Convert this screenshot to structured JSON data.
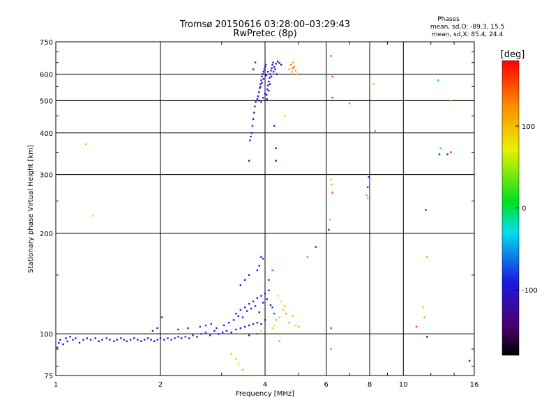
{
  "chart_data": {
    "type": "scatter",
    "title": "Tromsø 20150616 03:28:00–03:29:43",
    "subtitle": "RwPretec (8p)",
    "xlabel": "Frequency [MHz]",
    "ylabel": "Stationary phase Virtual Height [km]",
    "x_scale": "log",
    "y_scale": "log",
    "xlim": [
      1,
      16
    ],
    "ylim": [
      75,
      750
    ],
    "x_ticks": [
      1,
      2,
      4,
      6,
      8,
      10,
      16
    ],
    "y_ticks": [
      75,
      100,
      200,
      300,
      400,
      500,
      600,
      750
    ],
    "grid": true,
    "stats": {
      "heading": "Phases",
      "line_o": "mean, sd,O: -89.3, 15.5",
      "line_x": "mean, sd,X:  85.4, 24.4"
    },
    "colorbar": {
      "label": "[deg]",
      "range": [
        -180,
        180
      ],
      "ticks": [
        100,
        0,
        -100
      ],
      "tick_labels": [
        "100",
        "0",
        "-100"
      ],
      "colormap": "rainbow black-purple-blue-cyan-green-yellow-red"
    },
    "series": [
      {
        "points": [
          [
            1.01,
            91,
            -95
          ],
          [
            1.02,
            94,
            -92
          ],
          [
            1.03,
            96,
            -98
          ],
          [
            1.05,
            93,
            -90
          ],
          [
            1.07,
            97,
            -96
          ],
          [
            1.08,
            95,
            -100
          ],
          [
            1.1,
            98,
            -94
          ],
          [
            1.12,
            96,
            -92
          ],
          [
            1.14,
            97,
            -97
          ],
          [
            1.17,
            94,
            -99
          ],
          [
            1.2,
            96,
            -95
          ],
          [
            1.23,
            97,
            -91
          ],
          [
            1.26,
            96,
            -100
          ],
          [
            1.3,
            97,
            -94
          ],
          [
            1.33,
            95,
            -97
          ],
          [
            1.36,
            96,
            -92
          ],
          [
            1.4,
            97,
            -98
          ],
          [
            1.43,
            96,
            -95
          ],
          [
            1.47,
            95,
            -93
          ],
          [
            1.5,
            96,
            -99
          ],
          [
            1.54,
            97,
            -96
          ],
          [
            1.57,
            96,
            -91
          ],
          [
            1.6,
            95,
            -97
          ],
          [
            1.64,
            96,
            -94
          ],
          [
            1.68,
            97,
            -100
          ],
          [
            1.72,
            96,
            -92
          ],
          [
            1.76,
            95,
            -96
          ],
          [
            1.8,
            96,
            -98
          ],
          [
            1.84,
            97,
            -94
          ],
          [
            1.88,
            96,
            -90
          ],
          [
            1.92,
            95,
            -97
          ],
          [
            1.96,
            96,
            -93
          ],
          [
            2.0,
            97,
            -95
          ],
          [
            2.05,
            96,
            -88
          ],
          [
            2.1,
            97,
            -82
          ],
          [
            2.15,
            96,
            -78
          ],
          [
            2.2,
            97,
            -85
          ],
          [
            2.25,
            98,
            -80
          ],
          [
            2.3,
            97,
            -92
          ],
          [
            2.36,
            98,
            -87
          ],
          [
            2.42,
            97,
            -95
          ],
          [
            2.48,
            99,
            -90
          ],
          [
            2.55,
            98,
            -84
          ],
          [
            2.62,
            100,
            -77
          ],
          [
            2.7,
            101,
            -80
          ],
          [
            2.78,
            99,
            -88
          ],
          [
            2.86,
            102,
            -92
          ],
          [
            2.94,
            100,
            -95
          ],
          [
            3.02,
            101,
            -90
          ],
          [
            3.1,
            102,
            -94
          ],
          [
            3.2,
            101,
            -96
          ],
          [
            3.3,
            103,
            -92
          ],
          [
            3.4,
            104,
            -98
          ],
          [
            3.5,
            105,
            -95
          ],
          [
            3.6,
            106,
            -97
          ],
          [
            3.7,
            107,
            -94
          ],
          [
            3.8,
            108,
            -99
          ],
          [
            3.9,
            107,
            -96
          ],
          [
            4.0,
            110,
            -93
          ],
          [
            1.9,
            102,
            -90
          ],
          [
            1.96,
            104,
            -86
          ],
          [
            2.02,
            112,
            -92
          ],
          [
            2.25,
            103,
            -88
          ],
          [
            2.4,
            104,
            -84
          ],
          [
            2.6,
            105,
            -80
          ],
          [
            2.7,
            106,
            -76
          ],
          [
            2.8,
            107,
            -82
          ],
          [
            2.9,
            104,
            -86
          ],
          [
            3.05,
            106,
            -90
          ],
          [
            3.15,
            108,
            -93
          ],
          [
            3.25,
            110,
            -95
          ],
          [
            3.3,
            115,
            -98
          ],
          [
            3.35,
            113,
            -92
          ],
          [
            3.4,
            118,
            -96
          ],
          [
            3.45,
            112,
            -94
          ],
          [
            3.5,
            120,
            -97
          ],
          [
            3.55,
            117,
            -95
          ],
          [
            3.6,
            123,
            -99
          ],
          [
            3.65,
            119,
            -93
          ],
          [
            3.7,
            125,
            -96
          ],
          [
            3.75,
            121,
            -98
          ],
          [
            3.8,
            128,
            -94
          ],
          [
            3.85,
            116,
            -97
          ],
          [
            3.9,
            130,
            -95
          ],
          [
            3.95,
            124,
            -92
          ],
          [
            4.0,
            132,
            -96
          ],
          [
            4.05,
            127,
            -98
          ],
          [
            4.1,
            135,
            -94
          ],
          [
            4.15,
            122,
            -90
          ],
          [
            4.2,
            120,
            -85
          ],
          [
            4.25,
            115,
            -75
          ],
          [
            3.4,
            140,
            -95
          ],
          [
            3.5,
            145,
            -97
          ],
          [
            3.6,
            150,
            -93
          ],
          [
            3.8,
            155,
            -95
          ],
          [
            3.9,
            170,
            -98
          ],
          [
            3.95,
            168,
            -96
          ],
          [
            3.85,
            160,
            -94
          ],
          [
            4.1,
            145,
            -88
          ],
          [
            4.3,
            110,
            40
          ],
          [
            4.4,
            112,
            60
          ],
          [
            4.5,
            118,
            90
          ],
          [
            4.55,
            121,
            100
          ],
          [
            4.6,
            115,
            110
          ],
          [
            4.7,
            108,
            120
          ],
          [
            4.8,
            113,
            95
          ],
          [
            4.9,
            106,
            80
          ],
          [
            4.45,
            125,
            70
          ],
          [
            4.35,
            130,
            85
          ],
          [
            4.2,
            104,
            60
          ],
          [
            4.25,
            106,
            75
          ],
          [
            3.2,
            87,
            90
          ],
          [
            3.3,
            84,
            60
          ],
          [
            3.35,
            81,
            80
          ],
          [
            3.45,
            78,
            110
          ],
          [
            4.4,
            95,
            30
          ],
          [
            4.2,
            155,
            150
          ],
          [
            5.0,
            105,
            115
          ],
          [
            5.6,
            182,
            -95
          ],
          [
            5.3,
            170,
            -20
          ],
          [
            6.2,
            104,
            160
          ],
          [
            6.2,
            90,
            -20
          ],
          [
            3.9,
            102,
            80
          ],
          [
            3.8,
            100,
            -60
          ],
          [
            3.6,
            99,
            -94
          ],
          [
            3.6,
            330,
            -96
          ],
          [
            3.62,
            380,
            -95
          ],
          [
            3.64,
            390,
            -97
          ],
          [
            3.66,
            400,
            -93
          ],
          [
            3.68,
            420,
            -98
          ],
          [
            3.7,
            440,
            -95
          ],
          [
            3.72,
            460,
            -94
          ],
          [
            3.74,
            480,
            -96
          ],
          [
            3.76,
            495,
            -98
          ],
          [
            3.8,
            505,
            -95
          ],
          [
            3.82,
            515,
            -93
          ],
          [
            3.84,
            530,
            -97
          ],
          [
            3.86,
            545,
            -95
          ],
          [
            3.88,
            560,
            -94
          ],
          [
            3.9,
            575,
            -96
          ],
          [
            3.92,
            590,
            -98
          ],
          [
            3.94,
            600,
            -95
          ],
          [
            3.96,
            610,
            -93
          ],
          [
            3.98,
            620,
            -97
          ],
          [
            4.0,
            630,
            -95
          ],
          [
            4.02,
            640,
            -94
          ],
          [
            4.04,
            520,
            -96
          ],
          [
            4.06,
            540,
            -98
          ],
          [
            4.08,
            555,
            -95
          ],
          [
            4.1,
            570,
            -93
          ],
          [
            4.12,
            585,
            -97
          ],
          [
            4.14,
            600,
            -95
          ],
          [
            4.16,
            615,
            -94
          ],
          [
            4.18,
            625,
            -96
          ],
          [
            4.2,
            640,
            -98
          ],
          [
            4.22,
            650,
            -95
          ],
          [
            4.25,
            630,
            -93
          ],
          [
            4.3,
            645,
            -97
          ],
          [
            4.35,
            655,
            -95
          ],
          [
            4.4,
            648,
            -94
          ],
          [
            4.45,
            640,
            -96
          ],
          [
            3.85,
            500,
            -95
          ],
          [
            3.9,
            495,
            -97
          ],
          [
            3.95,
            510,
            -93
          ],
          [
            4.0,
            525,
            -96
          ],
          [
            4.05,
            505,
            -94
          ],
          [
            4.1,
            535,
            -95
          ],
          [
            3.88,
            550,
            -97
          ],
          [
            3.92,
            565,
            -95
          ],
          [
            3.96,
            580,
            -93
          ],
          [
            4.03,
            595,
            -96
          ],
          [
            4.08,
            610,
            -98
          ],
          [
            4.13,
            560,
            -95
          ],
          [
            4.17,
            590,
            -94
          ],
          [
            4.23,
            610,
            -96
          ],
          [
            4.28,
            620,
            -98
          ],
          [
            4.32,
            600,
            -95
          ],
          [
            3.7,
            620,
            -94
          ],
          [
            3.75,
            650,
            -96
          ],
          [
            4.25,
            420,
            -90
          ],
          [
            4.3,
            360,
            -95
          ],
          [
            4.3,
            330,
            -90
          ],
          [
            4.7,
            620,
            120
          ],
          [
            4.75,
            640,
            130
          ],
          [
            4.78,
            610,
            110
          ],
          [
            4.82,
            650,
            125
          ],
          [
            4.85,
            630,
            135
          ],
          [
            4.9,
            615,
            118
          ],
          [
            4.95,
            600,
            105
          ],
          [
            4.8,
            625,
            140
          ],
          [
            4.55,
            450,
            90
          ],
          [
            6.0,
            600,
            -60
          ],
          [
            6.2,
            680,
            150
          ],
          [
            6.25,
            590,
            150
          ],
          [
            6.25,
            510,
            170
          ],
          [
            7.0,
            490,
            130
          ],
          [
            8.2,
            560,
            100
          ],
          [
            8.3,
            405,
            20
          ],
          [
            6.15,
            220,
            110
          ],
          [
            6.2,
            290,
            90
          ],
          [
            6.22,
            280,
            110
          ],
          [
            6.25,
            265,
            150
          ],
          [
            7.95,
            295,
            -95
          ],
          [
            7.9,
            275,
            -90
          ],
          [
            7.85,
            260,
            30
          ],
          [
            7.9,
            255,
            40
          ],
          [
            8.0,
            182,
            20
          ],
          [
            6.1,
            205,
            -100
          ],
          [
            10.9,
            105,
            160
          ],
          [
            11.4,
            120,
            90
          ],
          [
            11.5,
            112,
            120
          ],
          [
            11.7,
            170,
            110
          ],
          [
            11.6,
            235,
            -100
          ],
          [
            11.7,
            98,
            -95
          ],
          [
            12.6,
            575,
            -40
          ],
          [
            12.8,
            360,
            -30
          ],
          [
            12.7,
            345,
            -100
          ],
          [
            13.4,
            345,
            -100
          ],
          [
            13.7,
            350,
            170
          ],
          [
            13.7,
            500,
            120
          ],
          [
            15.5,
            83,
            -90
          ],
          [
            1.22,
            370,
            100
          ],
          [
            1.28,
            226,
            60
          ]
        ]
      }
    ]
  }
}
